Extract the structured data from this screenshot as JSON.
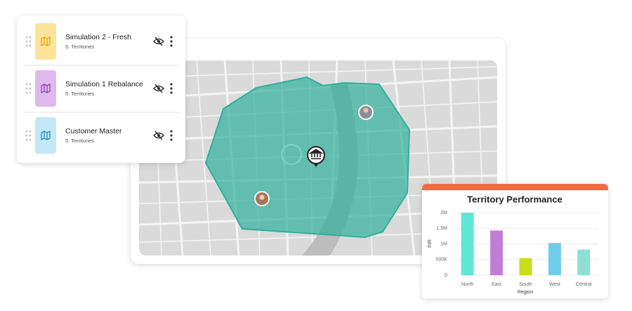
{
  "layers": [
    {
      "title": "Simulation 2 - Fresh",
      "subtitle": "5: Territories",
      "color": "#fde39a",
      "icon_color": "#e8a317"
    },
    {
      "title": "Simulation 1 Rebalance",
      "subtitle": "5: Territories",
      "color": "#e0b9ec",
      "icon_color": "#8e44ad"
    },
    {
      "title": "Customer Master",
      "subtitle": "5: Territories",
      "color": "#c3e7f5",
      "icon_color": "#2a8fc9"
    }
  ],
  "chart_data": {
    "type": "bar",
    "title": "Territory Performance",
    "x_label": "Region",
    "y_label": "INR",
    "categories": [
      "North",
      "East",
      "South",
      "West",
      "Central"
    ],
    "values": [
      2000000,
      1430000,
      550000,
      1030000,
      820000
    ],
    "colors": [
      "#5ee6d6",
      "#c07fd6",
      "#c9dd1b",
      "#6fcdea",
      "#8fded4"
    ],
    "ylim": [
      0,
      2000000
    ],
    "yticks": [
      0,
      {
        "value": 500000,
        "label": "500K"
      },
      {
        "value": 1000000,
        "label": "1M"
      },
      {
        "value": 1500000,
        "label": "1.5M"
      },
      {
        "value": 2000000,
        "label": "2M"
      }
    ],
    "grid": true
  }
}
